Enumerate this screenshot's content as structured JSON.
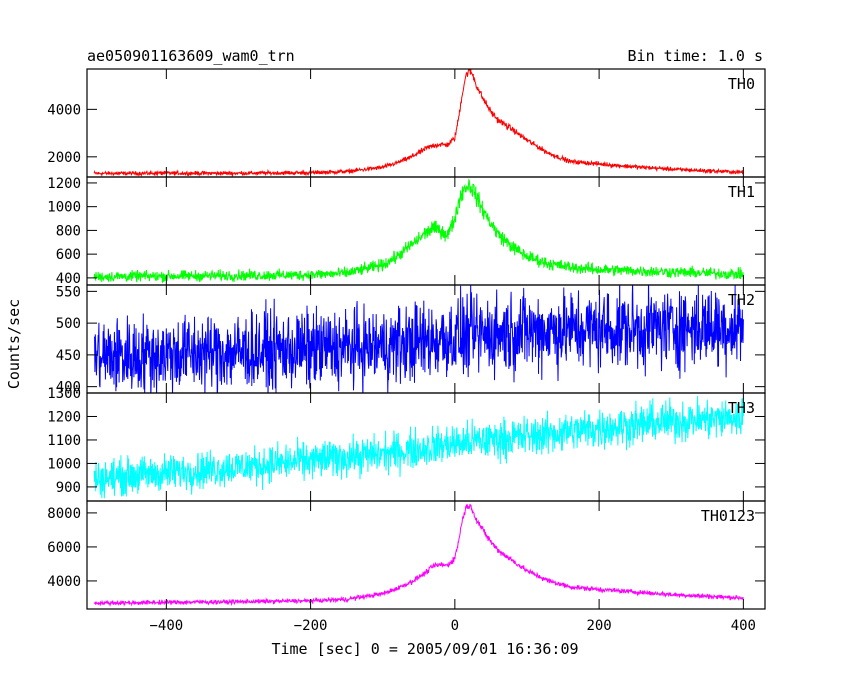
{
  "chart_data": {
    "type": "line",
    "title": "ae050901163609_wam0_trn",
    "bin_time_label": "Bin time: 1.0 s",
    "xlabel": "Time [sec] 0 = 2005/09/01 16:36:09",
    "ylabel": "Counts/sec",
    "xlim": [
      -510,
      430
    ],
    "x_ticks": [
      -400,
      -200,
      0,
      200,
      400
    ],
    "x_tick_labels": [
      "−400",
      "−200",
      "0",
      "200",
      "400"
    ],
    "panels": [
      {
        "name": "TH0",
        "color": "#ff0000",
        "ylim": [
          1150,
          5700
        ],
        "y_ticks": [
          2000,
          4000
        ],
        "y_tick_labels": [
          "2000",
          "4000"
        ],
        "x": [
          -500,
          -400,
          -300,
          -200,
          -150,
          -100,
          -80,
          -60,
          -40,
          -30,
          -20,
          -10,
          0,
          5,
          10,
          15,
          20,
          25,
          30,
          40,
          50,
          60,
          80,
          100,
          130,
          160,
          200,
          250,
          300,
          350,
          400
        ],
        "y": [
          1300,
          1310,
          1310,
          1330,
          1380,
          1560,
          1750,
          2000,
          2350,
          2480,
          2520,
          2500,
          2800,
          3600,
          4600,
          5400,
          5650,
          5450,
          5000,
          4400,
          3900,
          3550,
          3150,
          2700,
          2150,
          1800,
          1700,
          1580,
          1480,
          1410,
          1350
        ],
        "noise": 40
      },
      {
        "name": "TH1",
        "color": "#00ff00",
        "ylim": [
          340,
          1250
        ],
        "y_ticks": [
          400,
          600,
          800,
          1000,
          1200
        ],
        "y_tick_labels": [
          "400",
          "600",
          "800",
          "1000",
          "1200"
        ],
        "x": [
          -500,
          -400,
          -300,
          -200,
          -150,
          -100,
          -80,
          -60,
          -40,
          -30,
          -20,
          -10,
          0,
          5,
          10,
          15,
          20,
          25,
          30,
          40,
          50,
          60,
          80,
          100,
          130,
          160,
          200,
          250,
          300,
          350,
          400
        ],
        "y": [
          410,
          415,
          420,
          425,
          440,
          510,
          580,
          680,
          780,
          820,
          800,
          760,
          900,
          1030,
          1120,
          1170,
          1180,
          1150,
          1080,
          960,
          860,
          770,
          660,
          580,
          520,
          490,
          470,
          460,
          450,
          440,
          430
        ],
        "noise": 22
      },
      {
        "name": "TH2",
        "color": "#0000ff",
        "ylim": [
          390,
          560
        ],
        "y_ticks": [
          400,
          450,
          500,
          550
        ],
        "y_tick_labels": [
          "400",
          "450",
          "500",
          "550"
        ],
        "x": [
          -500,
          -300,
          -100,
          0,
          100,
          200,
          300,
          400
        ],
        "y": [
          447,
          455,
          463,
          478,
          488,
          490,
          493,
          495
        ],
        "noise": 30
      },
      {
        "name": "TH3",
        "color": "#00ffff",
        "ylim": [
          840,
          1300
        ],
        "y_ticks": [
          900,
          1000,
          1100,
          1200,
          1300
        ],
        "y_tick_labels": [
          "900",
          "1000",
          "1100",
          "1200",
          "1300"
        ],
        "x": [
          -500,
          -300,
          -100,
          0,
          100,
          200,
          300,
          400
        ],
        "y": [
          935,
          985,
          1040,
          1085,
          1115,
          1150,
          1180,
          1195
        ],
        "noise": 38
      },
      {
        "name": "TH0123",
        "color": "#ff00ff",
        "ylim": [
          2350,
          8700
        ],
        "y_ticks": [
          4000,
          6000,
          8000
        ],
        "y_tick_labels": [
          "4000",
          "6000",
          "8000"
        ],
        "x": [
          -500,
          -400,
          -300,
          -200,
          -150,
          -100,
          -80,
          -60,
          -40,
          -30,
          -20,
          -10,
          0,
          5,
          10,
          15,
          20,
          25,
          30,
          40,
          50,
          60,
          80,
          100,
          130,
          160,
          200,
          250,
          300,
          350,
          400
        ],
        "y": [
          2700,
          2740,
          2780,
          2830,
          2920,
          3250,
          3560,
          3950,
          4500,
          4880,
          4950,
          4920,
          5350,
          6300,
          7500,
          8300,
          8450,
          8150,
          7600,
          6900,
          6300,
          5800,
          5200,
          4600,
          4000,
          3650,
          3500,
          3350,
          3200,
          3100,
          3000
        ],
        "noise": 60
      }
    ]
  }
}
